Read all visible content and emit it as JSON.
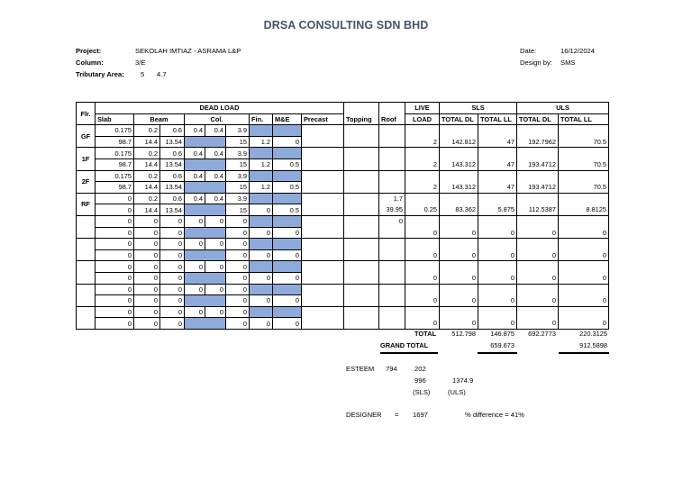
{
  "header": {
    "company": "DRSA CONSULTING SDN BHD",
    "project_label": "Project:",
    "project_value": "SEKOLAH IMTIAZ - ASRAMA L&P",
    "column_label": "Column:",
    "column_value": "3/E",
    "tributary_label": "Tributary Area:",
    "tributary_a": "5",
    "tributary_b": "4.7",
    "date_label": "Date:",
    "date_value": "16/12/2024",
    "designby_label": "Design by:",
    "designby_value": "SMS"
  },
  "table": {
    "headers": {
      "flr": "Flr.",
      "dead_load": "DEAD LOAD",
      "slab": "Slab",
      "beam": "Beam",
      "col": "Col.",
      "fin": "Fin.",
      "me": "M&E",
      "precast": "Precast",
      "topping": "Topping",
      "roof": "Roof",
      "live_1": "LIVE",
      "live_2": "LOAD",
      "sls": "SLS",
      "uls": "ULS",
      "sls_dl": "TOTAL DL",
      "sls_ll": "TOTAL LL",
      "uls_dl": "TOTAL DL",
      "uls_ll": "TOTAL LL"
    },
    "floors": [
      {
        "label": "GF",
        "r1": {
          "slab": "0.175",
          "beam_a": "0.2",
          "beam_b": "0.6",
          "col_a": "0.4",
          "col_b": "0.4",
          "col_c": "3.9",
          "roof": ""
        },
        "r2": {
          "slab": "98.7",
          "beam_a": "14.4",
          "beam_b": "13.54",
          "col_c": "15",
          "fin": "1.2",
          "me": "0",
          "roof": ""
        },
        "live": "2",
        "sls_dl": "142.812",
        "sls_ll": "47",
        "uls_dl": "192.7962",
        "uls_ll": "70.5"
      },
      {
        "label": "1F",
        "r1": {
          "slab": "0.175",
          "beam_a": "0.2",
          "beam_b": "0.6",
          "col_a": "0.4",
          "col_b": "0.4",
          "col_c": "3.9",
          "roof": ""
        },
        "r2": {
          "slab": "98.7",
          "beam_a": "14.4",
          "beam_b": "13.54",
          "col_c": "15",
          "fin": "1.2",
          "me": "0.5",
          "roof": ""
        },
        "live": "2",
        "sls_dl": "143.312",
        "sls_ll": "47",
        "uls_dl": "193.4712",
        "uls_ll": "70.5"
      },
      {
        "label": "2F",
        "r1": {
          "slab": "0.175",
          "beam_a": "0.2",
          "beam_b": "0.6",
          "col_a": "0.4",
          "col_b": "0.4",
          "col_c": "3.9",
          "roof": ""
        },
        "r2": {
          "slab": "98.7",
          "beam_a": "14.4",
          "beam_b": "13.54",
          "col_c": "15",
          "fin": "1.2",
          "me": "0.5",
          "roof": ""
        },
        "live": "2",
        "sls_dl": "143.312",
        "sls_ll": "47",
        "uls_dl": "193.4712",
        "uls_ll": "70.5"
      },
      {
        "label": "RF",
        "r1": {
          "slab": "0",
          "beam_a": "0.2",
          "beam_b": "0.6",
          "col_a": "0.4",
          "col_b": "0.4",
          "col_c": "3.9",
          "roof": "1.7"
        },
        "r2": {
          "slab": "0",
          "beam_a": "14.4",
          "beam_b": "13.54",
          "col_c": "15",
          "fin": "0",
          "me": "0.5",
          "roof": "39.95"
        },
        "live": "0.25",
        "sls_dl": "83.362",
        "sls_ll": "5.875",
        "uls_dl": "112.5387",
        "uls_ll": "8.8125"
      },
      {
        "label": "",
        "r1": {
          "slab": "0",
          "beam_a": "0",
          "beam_b": "0",
          "col_a": "0",
          "col_b": "0",
          "col_c": "0",
          "roof": "0"
        },
        "r2": {
          "slab": "0",
          "beam_a": "0",
          "beam_b": "0",
          "col_c": "0",
          "fin": "0",
          "me": "0",
          "roof": ""
        },
        "live": "0",
        "sls_dl": "0",
        "sls_ll": "0",
        "uls_dl": "0",
        "uls_ll": "0"
      },
      {
        "label": "",
        "r1": {
          "slab": "0",
          "beam_a": "0",
          "beam_b": "0",
          "col_a": "0",
          "col_b": "0",
          "col_c": "0",
          "roof": ""
        },
        "r2": {
          "slab": "0",
          "beam_a": "0",
          "beam_b": "0",
          "col_c": "0",
          "fin": "0",
          "me": "0",
          "roof": ""
        },
        "live": "0",
        "sls_dl": "0",
        "sls_ll": "0",
        "uls_dl": "0",
        "uls_ll": "0"
      },
      {
        "label": "",
        "r1": {
          "slab": "0",
          "beam_a": "0",
          "beam_b": "0",
          "col_a": "0",
          "col_b": "0",
          "col_c": "0",
          "roof": ""
        },
        "r2": {
          "slab": "0",
          "beam_a": "0",
          "beam_b": "0",
          "col_c": "0",
          "fin": "0",
          "me": "0",
          "roof": ""
        },
        "live": "0",
        "sls_dl": "0",
        "sls_ll": "0",
        "uls_dl": "0",
        "uls_ll": "0"
      },
      {
        "label": "",
        "r1": {
          "slab": "0",
          "beam_a": "0",
          "beam_b": "0",
          "col_a": "0",
          "col_b": "0",
          "col_c": "0",
          "roof": ""
        },
        "r2": {
          "slab": "0",
          "beam_a": "0",
          "beam_b": "0",
          "col_c": "0",
          "fin": "0",
          "me": "0",
          "roof": ""
        },
        "live": "0",
        "sls_dl": "0",
        "sls_ll": "0",
        "uls_dl": "0",
        "uls_ll": "0"
      },
      {
        "label": "",
        "r1": {
          "slab": "0",
          "beam_a": "0",
          "beam_b": "0",
          "col_a": "0",
          "col_b": "0",
          "col_c": "0",
          "roof": ""
        },
        "r2": {
          "slab": "0",
          "beam_a": "0",
          "beam_b": "0",
          "col_c": "0",
          "fin": "0",
          "me": "0",
          "roof": ""
        },
        "live": "0",
        "sls_dl": "0",
        "sls_ll": "0",
        "uls_dl": "0",
        "uls_ll": "0"
      }
    ],
    "totals": {
      "label": "TOTAL",
      "sls_dl": "512.798",
      "sls_ll": "146.875",
      "uls_dl": "692.2773",
      "uls_ll": "220.3125"
    },
    "grand_total": {
      "label": "GRAND TOTAL",
      "sls": "659.673",
      "uls": "912.5898"
    }
  },
  "summary": {
    "esteem_label": "ESTEEM",
    "esteem_a": "794",
    "esteem_b": "202",
    "esteem_sls": "996",
    "esteem_uls": "1374.9",
    "sls_label": "(SLS)",
    "uls_label": "(ULS)",
    "designer_label": "DESIGNER",
    "equals": "=",
    "designer_value": "1697",
    "difference": "% difference = 41%"
  },
  "colors": {
    "title": "#44546a",
    "blue_fill": "#8eaadb"
  }
}
